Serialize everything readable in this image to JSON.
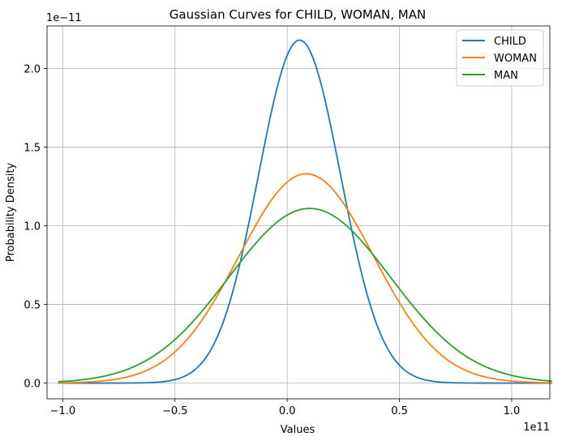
{
  "chart_data": {
    "type": "line",
    "title": "Gaussian Curves for CHILD, WOMAN, MAN",
    "xlabel": "Values",
    "ylabel": "Probability Density",
    "x_offset_label": "1e11",
    "y_offset_label": "1e−11",
    "xlim": [
      -1.07,
      1.17
    ],
    "ylim": [
      -0.1,
      2.27
    ],
    "x_ticks": [
      -1.0,
      -0.5,
      0.0,
      0.5,
      1.0
    ],
    "x_tick_labels": [
      "−1.0",
      "−0.5",
      "0.0",
      "0.5",
      "1.0"
    ],
    "y_ticks": [
      0.0,
      0.5,
      1.0,
      1.5,
      2.0
    ],
    "y_tick_labels": [
      "0.0",
      "0.5",
      "1.0",
      "1.5",
      "2.0"
    ],
    "x_range": [
      -1.02,
      1.18
    ],
    "grid": true,
    "legend": "top-right",
    "colors": [
      "#1f77b4",
      "#ff7f0e",
      "#2ca02c"
    ],
    "series": [
      {
        "name": "CHILD",
        "mean": 0.055,
        "std": 0.183,
        "peak": 2.18
      },
      {
        "name": "WOMAN",
        "mean": 0.085,
        "std": 0.3,
        "peak": 1.33
      },
      {
        "name": "MAN",
        "mean": 0.1,
        "std": 0.36,
        "peak": 1.11
      }
    ]
  }
}
